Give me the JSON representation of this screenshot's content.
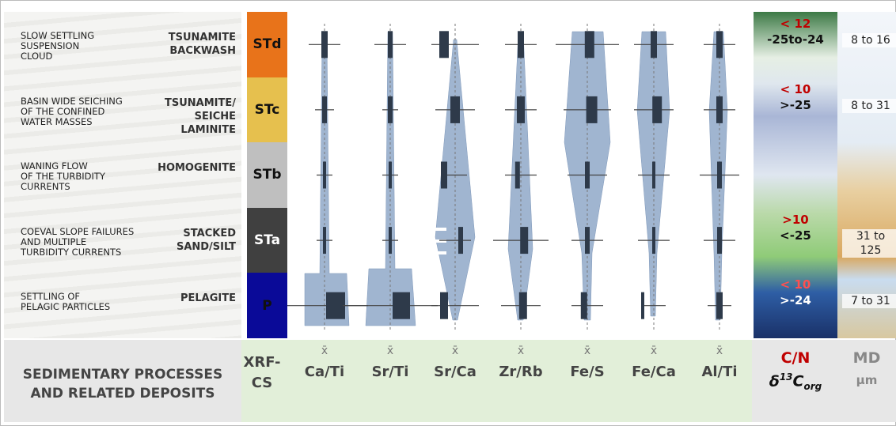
{
  "rows": [
    {
      "process": [
        "SLOW SETTLING",
        "SUSPENSION",
        "CLOUD"
      ],
      "deposit": [
        "TSUNAMITE",
        "BACKWASH"
      ],
      "unit": "STd",
      "cn": "< 12",
      "d13c": "-25to-24",
      "md": [
        "8 to 16"
      ]
    },
    {
      "process": [
        "BASIN WIDE SEICHING",
        "OF THE CONFINED",
        "WATER MASSES"
      ],
      "deposit": [
        "TSUNAMITE/",
        "SEICHE",
        "LAMINITE"
      ],
      "unit": "STc",
      "cn": "< 10",
      "d13c": ">-25",
      "md": [
        "8 to 31"
      ]
    },
    {
      "process": [
        "WANING FLOW",
        "OF THE TURBIDITY",
        "CURRENTS"
      ],
      "deposit": [
        "HOMOGENITE"
      ],
      "unit": "STb",
      "cn": null,
      "d13c": null,
      "md": null
    },
    {
      "process": [
        "COEVAL SLOPE FAILURES",
        "AND MULTIPLE",
        "TURBIDITY CURRENTS"
      ],
      "deposit": [
        "STACKED",
        "SAND/SILT"
      ],
      "unit": "STa",
      "cn": ">10",
      "d13c": "<-25",
      "md": [
        "31 to",
        "125"
      ]
    },
    {
      "process": [
        "SETTLING OF",
        "PELAGIC PARTICLES"
      ],
      "deposit": [
        "PELAGITE"
      ],
      "unit": "P",
      "cn": "< 10",
      "d13c": ">-24",
      "md": [
        "7 to 31"
      ]
    }
  ],
  "columns": {
    "method": [
      "XRF-",
      "CS"
    ],
    "mean_symbol": "x̄",
    "ratios": [
      "Ca/Ti",
      "Sr/Ti",
      "Sr/Ca",
      "Zr/Rb",
      "Fe/S",
      "Fe/Ca",
      "Al/Ti"
    ]
  },
  "footer": {
    "left": [
      "SEDIMENTARY PROCESSES",
      "AND RELATED DEPOSITS"
    ],
    "cn": "C/N",
    "d13c": {
      "symbol": "δ",
      "sup": "13",
      "base": "C",
      "sub": "org"
    },
    "md": "MD",
    "md_unit": "µm"
  }
}
